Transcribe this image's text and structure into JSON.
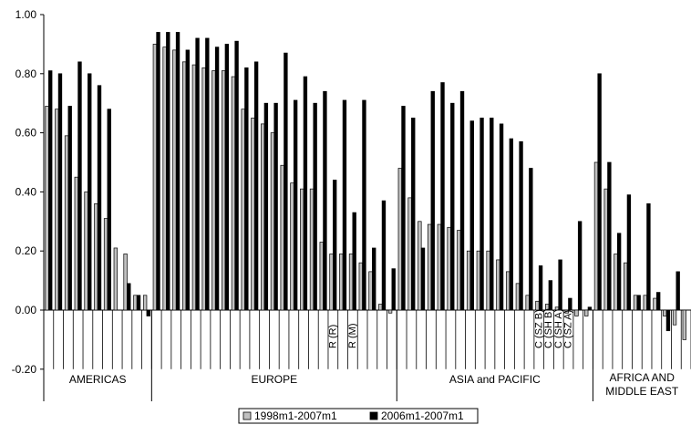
{
  "chart_data": {
    "type": "bar",
    "title": "",
    "xlabel": "",
    "ylabel": "",
    "ylim": [
      -0.2,
      1.0
    ],
    "yticks": [
      "-0.20",
      "0.00",
      "0.20",
      "0.40",
      "0.60",
      "0.80",
      "1.00"
    ],
    "grid": false,
    "legend_position": "bottom",
    "series": [
      {
        "name": "1998m1-2007m1",
        "color": "#c0c0c0",
        "values": [
          0.69,
          0.68,
          0.59,
          0.45,
          0.4,
          0.36,
          0.31,
          0.21,
          0.19,
          0.05,
          0.05,
          0.9,
          0.89,
          0.88,
          0.84,
          0.83,
          0.82,
          0.81,
          0.81,
          0.79,
          0.68,
          0.65,
          0.63,
          0.6,
          0.49,
          0.43,
          0.41,
          0.41,
          0.23,
          0.19,
          0.19,
          0.19,
          0.16,
          0.13,
          0.02,
          -0.01,
          0.48,
          0.38,
          0.3,
          0.29,
          0.29,
          0.28,
          0.27,
          0.2,
          0.2,
          0.2,
          0.17,
          0.13,
          0.09,
          0.05,
          0.03,
          0.02,
          0.01,
          -0.01,
          -0.02,
          -0.02,
          0.5,
          0.41,
          0.19,
          0.16,
          0.05,
          0.05,
          0.04,
          -0.02,
          -0.05,
          -0.1
        ]
      },
      {
        "name": "2006m1-2007m1",
        "color": "#000000",
        "values": [
          0.81,
          0.8,
          0.69,
          0.84,
          0.8,
          0.76,
          0.68,
          0.0,
          0.09,
          0.05,
          -0.02,
          0.94,
          0.94,
          0.94,
          0.88,
          0.92,
          0.92,
          0.89,
          0.9,
          0.91,
          0.82,
          0.84,
          0.7,
          0.7,
          0.87,
          0.71,
          0.79,
          0.7,
          0.74,
          0.44,
          0.71,
          0.33,
          0.71,
          0.21,
          0.37,
          0.14,
          0.69,
          0.65,
          0.21,
          0.74,
          0.77,
          0.7,
          0.74,
          0.64,
          0.65,
          0.65,
          0.63,
          0.58,
          0.57,
          0.48,
          0.15,
          0.1,
          0.17,
          0.04,
          0.3,
          0.01,
          0.8,
          0.5,
          0.26,
          0.39,
          0.05,
          0.36,
          0.06,
          -0.07,
          0.13,
          0.0
        ]
      }
    ],
    "regions": [
      {
        "label": "AMERICAS",
        "start": 0,
        "end": 10
      },
      {
        "label": "EUROPE",
        "start": 11,
        "end": 35
      },
      {
        "label": "ASIA and PACIFIC",
        "start": 36,
        "end": 55
      },
      {
        "label": "AFRICA AND\nMIDDLE EAST",
        "start": 56,
        "end": 65
      }
    ],
    "bar_labels": [
      {
        "index": 29,
        "text": "R (R)"
      },
      {
        "index": 31,
        "text": "R (M)"
      },
      {
        "index": 50,
        "text": "C (SZ B)"
      },
      {
        "index": 51,
        "text": "C (SH B)"
      },
      {
        "index": 52,
        "text": "C (SH A)"
      },
      {
        "index": 53,
        "text": "C (SZ A)"
      }
    ]
  }
}
